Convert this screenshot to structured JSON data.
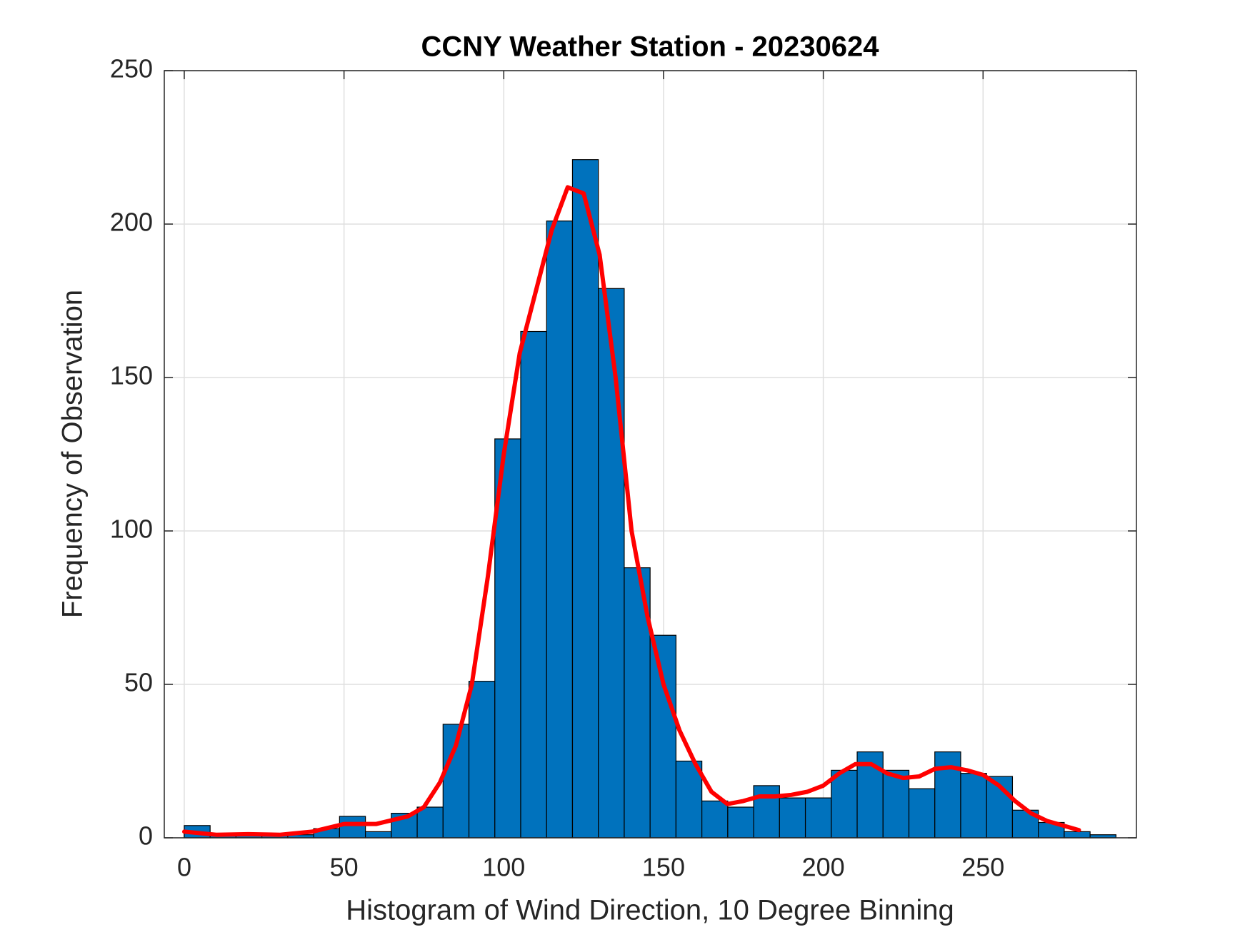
{
  "chart_data": {
    "type": "histogram",
    "title": "CCNY Weather Station - 20230624",
    "xlabel": "Histogram of Wind Direction, 10 Degree Binning",
    "ylabel": "Frequency of Observation",
    "bins": [
      0,
      8.1,
      16.2,
      24.3,
      32.4,
      40.5,
      48.6,
      56.7,
      64.8,
      72.9,
      81,
      89.1,
      97.2,
      105.3,
      113.4,
      121.5,
      129.6,
      137.7,
      145.8,
      153.9,
      162,
      170.1,
      178.2,
      186.3,
      194.4,
      202.5,
      210.6,
      218.7,
      226.8,
      234.9,
      243,
      251.1,
      259.2,
      267.3,
      275.4,
      283.5,
      291.6
    ],
    "counts": [
      4,
      1,
      1,
      1,
      1,
      3,
      7,
      2,
      8,
      10,
      37,
      51,
      130,
      165,
      201,
      221,
      179,
      88,
      66,
      25,
      12,
      10,
      17,
      13,
      13,
      22,
      28,
      22,
      16,
      28,
      21,
      20,
      9,
      5,
      2,
      1
    ],
    "color": "#0072bd",
    "line": {
      "color": "#ff0000",
      "x": [
        0,
        10,
        20,
        30,
        40,
        50,
        60,
        70,
        75,
        80,
        85,
        90,
        95,
        100,
        105,
        110,
        115,
        120,
        125,
        130,
        135,
        140,
        145,
        150,
        155,
        160,
        165,
        170,
        175,
        180,
        185,
        190,
        195,
        200,
        205,
        210,
        215,
        220,
        225,
        230,
        235,
        240,
        245,
        250,
        255,
        260,
        265,
        270,
        275,
        280
      ],
      "y": [
        2,
        1,
        1.2,
        1,
        2,
        4.5,
        4.5,
        7,
        10,
        18,
        30,
        50,
        85,
        125,
        158,
        178,
        198,
        212,
        210,
        190,
        150,
        100,
        72,
        50,
        35,
        24,
        15,
        11,
        12,
        13.5,
        13.5,
        14,
        15,
        17,
        21,
        24,
        24,
        21,
        19.5,
        20,
        22.5,
        23,
        22,
        20.5,
        17,
        12,
        8,
        5.5,
        4,
        2.5
      ]
    },
    "xlim": [
      -6.25,
      298
    ],
    "ylim": [
      0,
      250
    ],
    "xticks": [
      0,
      50,
      100,
      150,
      200,
      250
    ],
    "yticks": [
      0,
      50,
      100,
      150,
      200,
      250
    ],
    "grid": true
  }
}
